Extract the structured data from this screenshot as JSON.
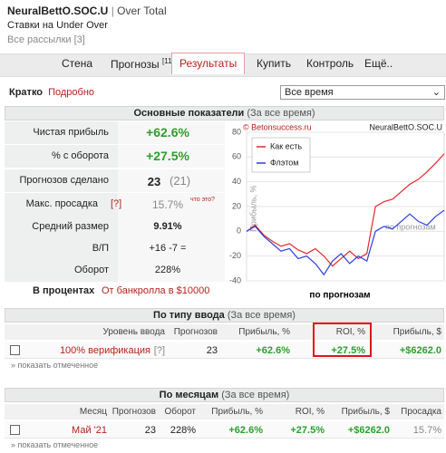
{
  "header": {
    "title": "NeuralBettO.SOC.U",
    "separator": "|",
    "subtitle": "Over Total",
    "description": "Ставки на Under Over",
    "link": "Все рассылки [3]"
  },
  "nav": [
    {
      "label": "Стена"
    },
    {
      "label": "Прогнозы",
      "badge": "[11]"
    },
    {
      "label": "Результаты",
      "active": true
    },
    {
      "label": "Купить"
    },
    {
      "label": "Контроль"
    },
    {
      "label": "Ещё.."
    }
  ],
  "view_tabs": [
    "Кратко",
    "Подробно"
  ],
  "period_select": "Все время",
  "summary": {
    "title": "Основные показатели",
    "period": "(За все время)",
    "rows": [
      {
        "label": "Чистая прибыль",
        "value": "+62.6%",
        "color": "#2e9e2e"
      },
      {
        "label": "% с оборота",
        "value": "+27.5%",
        "color": "#2e9e2e"
      },
      {
        "label": "Прогнозов сделано",
        "value": "23",
        "extra": "(21)"
      },
      {
        "label": "Макс. просадка",
        "help": "[?]",
        "value": "15.7%",
        "extra": "что это?"
      },
      {
        "label": "Средний размер",
        "value": "9.91%"
      },
      {
        "label": "В/П",
        "value": "+16 -7 ="
      },
      {
        "label": "Оборот",
        "value": "228%"
      }
    ],
    "footer_label": "В процентах",
    "footer_link": "От банкролла в $10000"
  },
  "chart_data": {
    "type": "line",
    "watermark": "© Betonsuccess.ru",
    "title": "NeuralBettO.SOC.U",
    "y_label": "Прибыль, %",
    "x_label": "по прогнозам",
    "x_note": "по прогнозам",
    "ylim": [
      -40,
      80
    ],
    "yticks": [
      -40,
      -20,
      0,
      20,
      40,
      60,
      80
    ],
    "grid": true,
    "legend": "top-left",
    "series": [
      {
        "name": "Как есть",
        "color": "#e8262a",
        "values": [
          0,
          5,
          -3,
          -8,
          -12,
          -10,
          -15,
          -18,
          -14,
          -20,
          -28,
          -22,
          -16,
          -22,
          -18,
          20,
          24,
          26,
          32,
          38,
          42,
          48,
          55,
          62.6
        ]
      },
      {
        "name": "Флэтом",
        "color": "#2a3fe0",
        "values": [
          0,
          4,
          -4,
          -10,
          -16,
          -14,
          -22,
          -20,
          -26,
          -35,
          -24,
          -18,
          -26,
          -20,
          -24,
          0,
          4,
          2,
          8,
          14,
          8,
          5,
          12,
          17
        ]
      }
    ]
  },
  "by_type": {
    "title": "По типу ввода",
    "period": "(За все время)",
    "columns": [
      "Уровень ввода",
      "Прогнозов",
      "Прибыль, %",
      "ROI, %",
      "Прибыль, $"
    ],
    "rows": [
      {
        "cells": [
          "100% верификация",
          "23",
          "+62.6%",
          "+27.5%",
          "+$6262.0"
        ],
        "help": "[?]"
      }
    ],
    "highlight_column": 3,
    "show_selected": "» показать отмеченное"
  },
  "by_month": {
    "title": "По месяцам",
    "period": "(За все время)",
    "columns": [
      "Месяц",
      "Прогнозов",
      "Оборот",
      "Прибыль, %",
      "ROI, %",
      "Прибыль, $",
      "Просадка"
    ],
    "rows": [
      {
        "cells": [
          "Май '21",
          "23",
          "228%",
          "+62.6%",
          "+27.5%",
          "+$6262.0",
          "15.7%"
        ]
      }
    ],
    "show_selected": "» показать отмеченное"
  }
}
